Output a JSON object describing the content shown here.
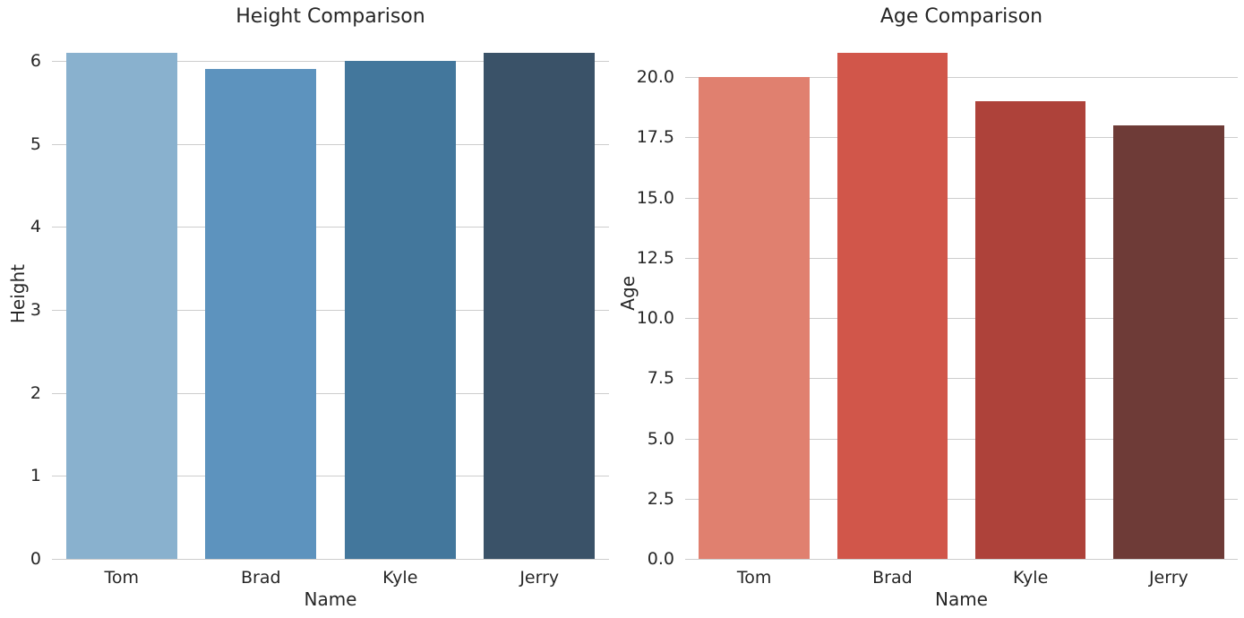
{
  "figure": {
    "background_color": "#ffffff",
    "text_color": "#262626",
    "grid_color": "#cdcdcd"
  },
  "chart_data": [
    {
      "type": "bar",
      "title": "Height Comparison",
      "xlabel": "Name",
      "ylabel": "Height",
      "categories": [
        "Tom",
        "Brad",
        "Kyle",
        "Jerry"
      ],
      "values": [
        6.1,
        5.9,
        6.0,
        6.1
      ],
      "bar_colors": [
        "#89b1ce",
        "#5d93be",
        "#43779c",
        "#3a5268"
      ],
      "yticks": [
        0,
        1,
        2,
        3,
        4,
        5,
        6
      ],
      "ytick_labels": [
        "0",
        "1",
        "2",
        "3",
        "4",
        "5",
        "6"
      ],
      "ylim": [
        0,
        6.4
      ],
      "grid": "horizontal",
      "legend": null
    },
    {
      "type": "bar",
      "title": "Age Comparison",
      "xlabel": "Name",
      "ylabel": "Age",
      "categories": [
        "Tom",
        "Brad",
        "Kyle",
        "Jerry"
      ],
      "values": [
        20,
        21,
        19,
        18
      ],
      "bar_colors": [
        "#e0806f",
        "#d1564a",
        "#ae423a",
        "#6e3b37"
      ],
      "yticks": [
        0,
        2.5,
        5,
        7.5,
        10,
        12.5,
        15,
        17.5,
        20
      ],
      "ytick_labels": [
        "0.0",
        "2.5",
        "5.0",
        "7.5",
        "10.0",
        "12.5",
        "15.0",
        "17.5",
        "20.0"
      ],
      "ylim": [
        0,
        22.05
      ],
      "grid": "horizontal",
      "legend": null
    }
  ]
}
